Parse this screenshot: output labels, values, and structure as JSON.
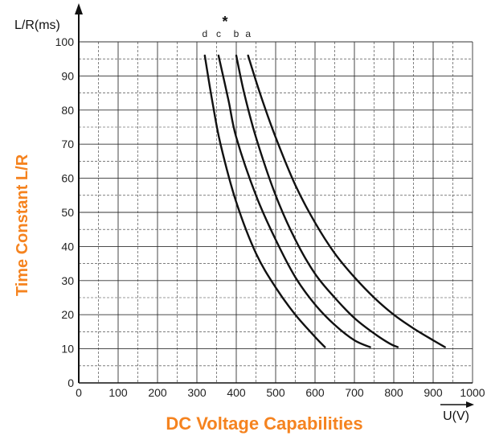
{
  "chart_data": {
    "type": "line",
    "title": "",
    "xlabel": "DC Voltage Capabilities",
    "ylabel": "Time Constant L/R",
    "x_axis_unit": "U(V)",
    "y_axis_unit": "L/R(ms)",
    "asterisk": "*",
    "xlim": [
      0,
      1000
    ],
    "ylim": [
      0,
      100
    ],
    "x_ticks": [
      0,
      100,
      200,
      300,
      400,
      500,
      600,
      700,
      800,
      900,
      1000
    ],
    "y_ticks": [
      0,
      10,
      20,
      30,
      40,
      50,
      60,
      70,
      80,
      90,
      100
    ],
    "grid": true,
    "series": [
      {
        "name": "a",
        "points": [
          [
            430,
            96
          ],
          [
            460,
            85
          ],
          [
            500,
            72
          ],
          [
            550,
            58
          ],
          [
            600,
            47
          ],
          [
            650,
            38
          ],
          [
            700,
            31
          ],
          [
            750,
            25
          ],
          [
            800,
            20
          ],
          [
            850,
            16
          ],
          [
            900,
            12.5
          ],
          [
            930,
            10.5
          ]
        ]
      },
      {
        "name": "b",
        "points": [
          [
            400,
            96
          ],
          [
            420,
            85
          ],
          [
            450,
            72
          ],
          [
            500,
            55
          ],
          [
            550,
            42
          ],
          [
            600,
            32
          ],
          [
            650,
            25
          ],
          [
            700,
            19
          ],
          [
            750,
            14.5
          ],
          [
            790,
            11.5
          ],
          [
            810,
            10.5
          ]
        ]
      },
      {
        "name": "c",
        "points": [
          [
            355,
            96
          ],
          [
            380,
            83
          ],
          [
            400,
            72
          ],
          [
            450,
            55
          ],
          [
            500,
            42
          ],
          [
            550,
            31
          ],
          [
            600,
            23
          ],
          [
            650,
            17
          ],
          [
            700,
            12.5
          ],
          [
            740,
            10.5
          ]
        ]
      },
      {
        "name": "d",
        "points": [
          [
            320,
            96
          ],
          [
            340,
            82
          ],
          [
            360,
            70
          ],
          [
            400,
            53
          ],
          [
            450,
            38
          ],
          [
            500,
            28
          ],
          [
            550,
            20
          ],
          [
            600,
            13.5
          ],
          [
            625,
            10.5
          ]
        ]
      }
    ],
    "colors": {
      "caption": "#f5831f",
      "ink": "#111111",
      "grid": "#333333"
    }
  }
}
